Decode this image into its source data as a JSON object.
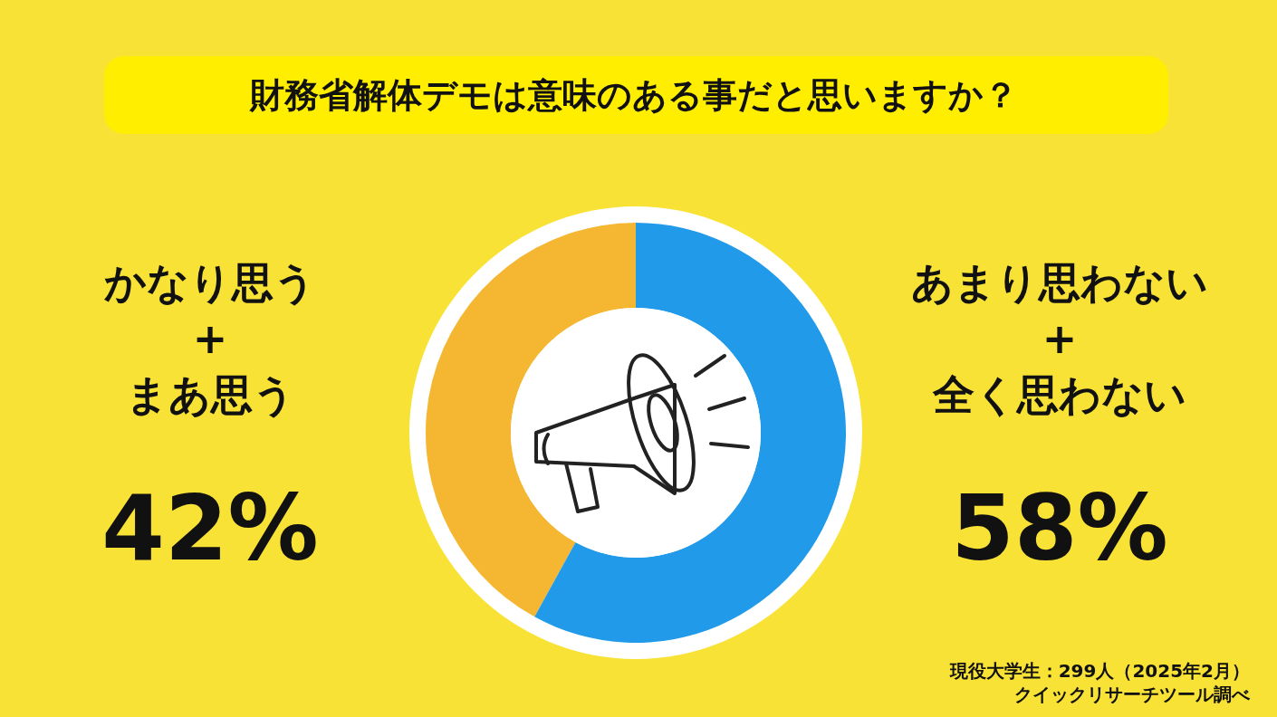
{
  "chart_data": {
    "type": "donut",
    "title": "財務省解体デモは意味のある事だと思いますか？",
    "categories": [
      "かなり思う\n+\nまあ思う",
      "あまり思わない\n+\n全く思わない"
    ],
    "values": [
      42,
      58
    ],
    "colors": [
      "#f5b731",
      "#219aea"
    ],
    "value_labels": [
      "42%",
      "58%"
    ],
    "annotations": [
      "現役大学生：299人（2025年2月）",
      "クイックリサーチツール調べ"
    ]
  }
}
